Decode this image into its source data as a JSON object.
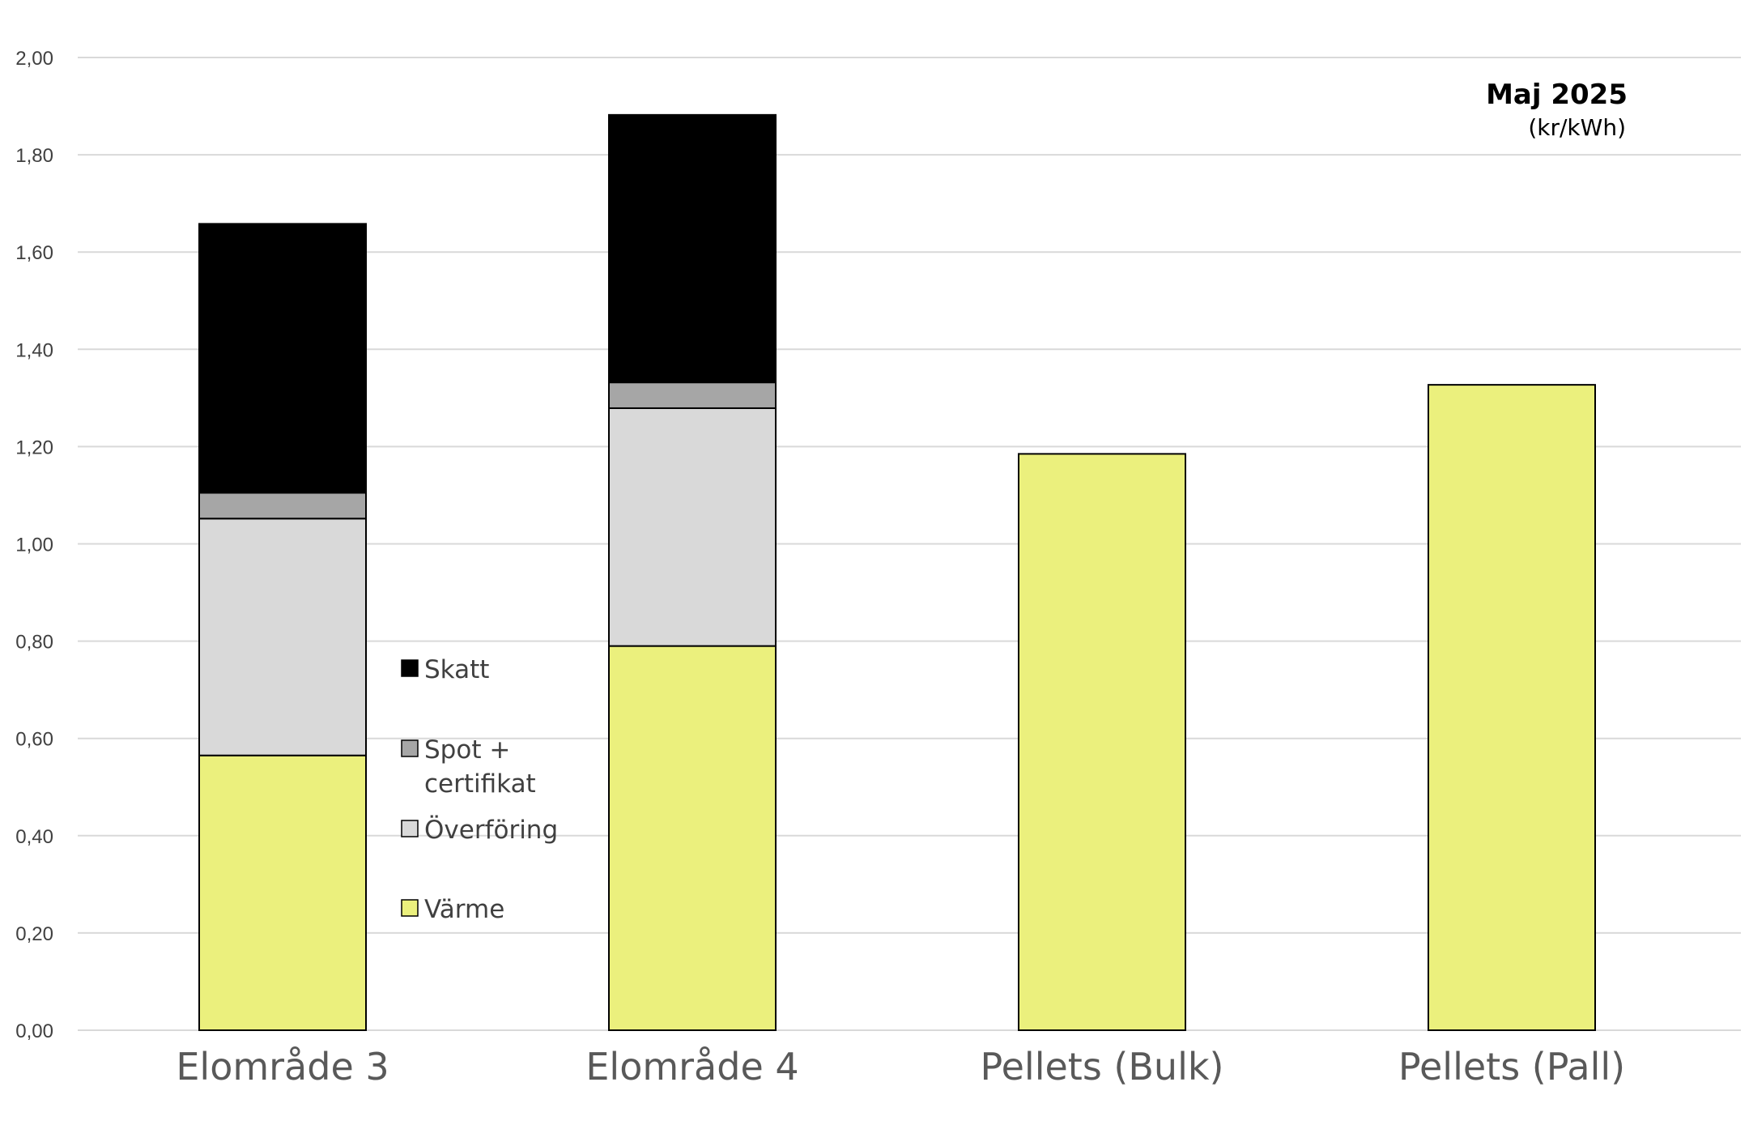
{
  "chart_data": {
    "type": "bar",
    "stacked": true,
    "title": "Maj 2025",
    "subtitle": "(kr/kWh)",
    "categories": [
      "Elområde 3",
      "Elområde 4",
      "Pellets (Bulk)",
      "Pellets (Pall)"
    ],
    "series": [
      {
        "name": "Värme",
        "color": "#EBF07D",
        "values": [
          0.565,
          0.79,
          1.185,
          1.327
        ]
      },
      {
        "name": "Överföring",
        "color": "#D9D9D9",
        "values": [
          0.487,
          0.489,
          0,
          0
        ]
      },
      {
        "name": "Spot + certifikat",
        "name_lines": [
          "Spot +",
          "certifikat"
        ],
        "color": "#A6A6A6",
        "values": [
          0.053,
          0.053,
          0,
          0
        ]
      },
      {
        "name": "Skatt",
        "color": "#000000",
        "values": [
          0.553,
          0.55,
          0,
          0
        ]
      }
    ],
    "legend_order": [
      "Skatt",
      "Spot + certifikat",
      "Överföring",
      "Värme"
    ],
    "ylim": [
      0,
      2.0
    ],
    "yticks": [
      "0,00",
      "0,20",
      "0,40",
      "0,60",
      "0,80",
      "1,00",
      "1,20",
      "1,40",
      "1,60",
      "1,80",
      "2,00"
    ],
    "grid": true,
    "legend_position": "inside-left"
  }
}
